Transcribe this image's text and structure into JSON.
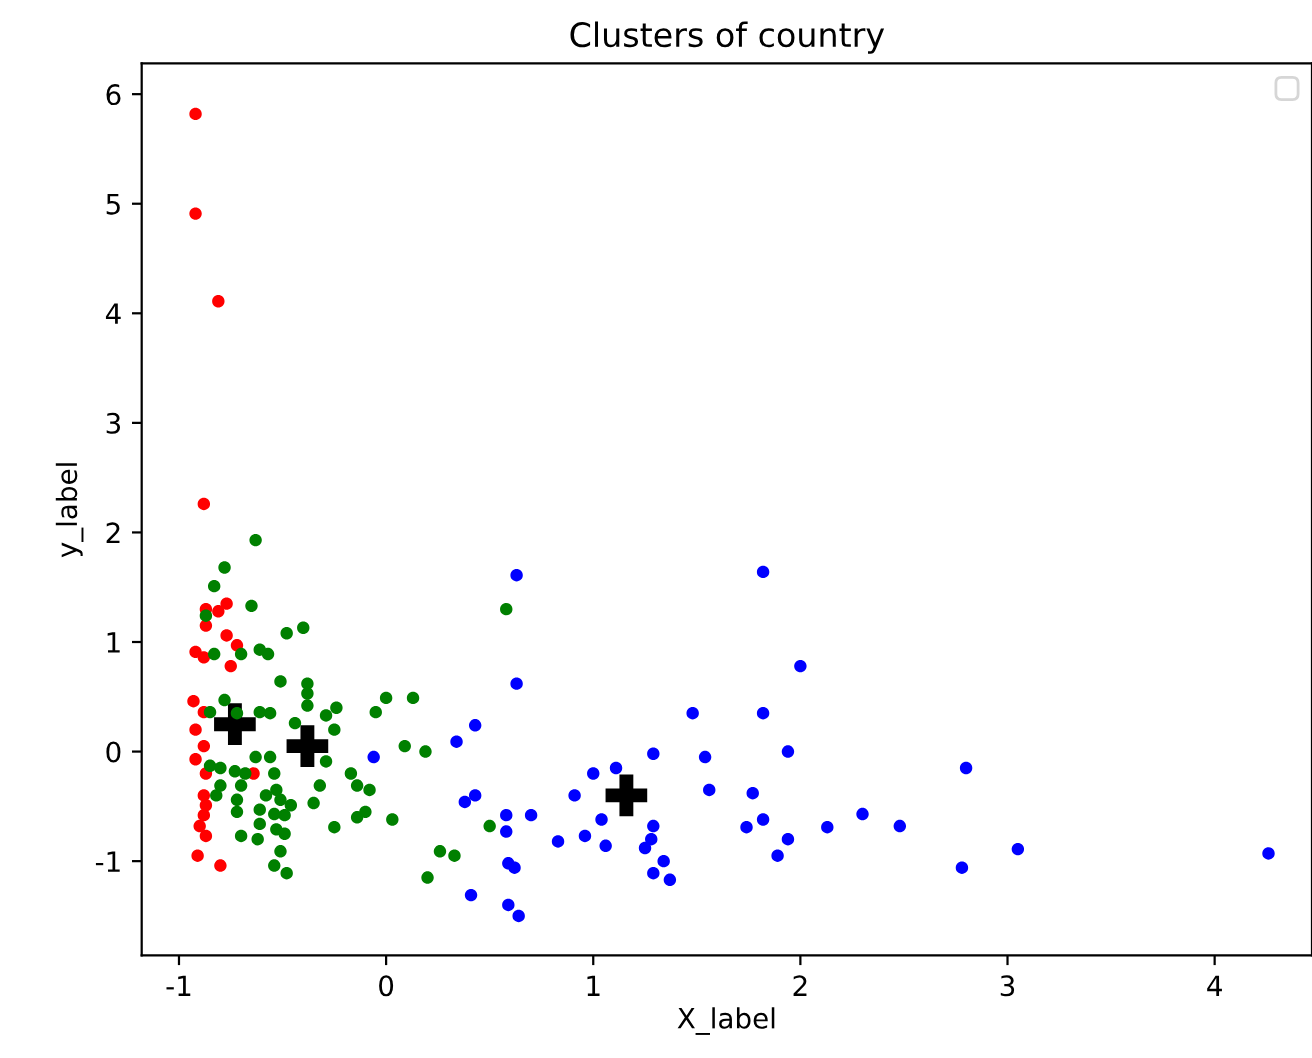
{
  "chart_data": {
    "type": "scatter",
    "title": "Clusters of country",
    "xlabel": "X_label",
    "ylabel": "y_label",
    "xlim": [
      -1.18,
      4.47
    ],
    "ylim": [
      -1.86,
      6.28
    ],
    "xticks": [
      -1,
      0,
      1,
      2,
      3,
      4
    ],
    "yticks": [
      -1,
      0,
      1,
      2,
      3,
      4,
      5,
      6
    ],
    "grid": false,
    "marker": "circle",
    "series": [
      {
        "color": "#ff0000",
        "x": [
          -0.92,
          -0.92,
          -0.81,
          -0.88,
          -0.87,
          -0.81,
          -0.77,
          -0.87,
          -0.77,
          -0.72,
          -0.92,
          -0.88,
          -0.75,
          -0.93,
          -0.88,
          -0.92,
          -0.88,
          -0.92,
          -0.87,
          -0.64,
          -0.88,
          -0.87,
          -0.88,
          -0.9,
          -0.87,
          -0.91,
          -0.8
        ],
        "values": [
          5.82,
          4.91,
          4.11,
          2.26,
          1.3,
          1.28,
          1.35,
          1.15,
          1.06,
          0.97,
          0.91,
          0.86,
          0.78,
          0.46,
          0.36,
          0.2,
          0.05,
          -0.07,
          -0.2,
          -0.2,
          -0.4,
          -0.49,
          -0.58,
          -0.68,
          -0.77,
          -0.95,
          -1.04
        ]
      },
      {
        "color": "#008000",
        "x": [
          -0.63,
          -0.78,
          -0.83,
          -0.65,
          -0.87,
          -0.4,
          -0.48,
          -0.83,
          -0.7,
          -0.61,
          -0.57,
          -0.51,
          -0.38,
          -0.38,
          -0.38,
          -0.78,
          -0.85,
          -0.72,
          -0.61,
          -0.56,
          -0.44,
          -0.29,
          -0.24,
          -0.25,
          -0.05,
          0.0,
          0.13,
          0.09,
          0.19,
          -0.63,
          -0.56,
          -0.29,
          -0.85,
          -0.8,
          -0.73,
          -0.68,
          -0.54,
          -0.17,
          -0.8,
          -0.7,
          -0.14,
          -0.08,
          -0.32,
          -0.53,
          -0.82,
          -0.72,
          -0.58,
          -0.51,
          -0.46,
          -0.35,
          -0.61,
          -0.54,
          -0.49,
          -0.72,
          -0.1,
          -0.14,
          0.03,
          -0.61,
          -0.53,
          -0.25,
          -0.7,
          -0.62,
          -0.49,
          0.5,
          -0.51,
          0.26,
          0.33,
          -0.54,
          -0.48,
          0.2,
          0.58
        ],
        "values": [
          1.93,
          1.68,
          1.51,
          1.33,
          1.24,
          1.13,
          1.08,
          0.89,
          0.89,
          0.93,
          0.89,
          0.64,
          0.62,
          0.53,
          0.42,
          0.47,
          0.36,
          0.35,
          0.36,
          0.35,
          0.26,
          0.33,
          0.4,
          0.2,
          0.36,
          0.49,
          0.49,
          0.05,
          0.0,
          -0.05,
          -0.05,
          -0.09,
          -0.13,
          -0.15,
          -0.18,
          -0.2,
          -0.2,
          -0.2,
          -0.31,
          -0.31,
          -0.31,
          -0.35,
          -0.31,
          -0.35,
          -0.4,
          -0.44,
          -0.4,
          -0.44,
          -0.49,
          -0.47,
          -0.53,
          -0.57,
          -0.58,
          -0.55,
          -0.55,
          -0.6,
          -0.62,
          -0.66,
          -0.71,
          -0.69,
          -0.77,
          -0.8,
          -0.75,
          -0.68,
          -0.91,
          -0.91,
          -0.95,
          -1.04,
          -1.11,
          -1.15,
          1.3
        ]
      },
      {
        "color": "#0000ff",
        "x": [
          0.63,
          0.63,
          -0.06,
          0.34,
          0.43,
          0.38,
          0.43,
          0.58,
          0.7,
          0.58,
          0.59,
          0.62,
          0.41,
          0.59,
          0.64,
          0.83,
          0.91,
          0.96,
          1.0,
          1.11,
          1.04,
          1.06,
          1.29,
          1.29,
          1.28,
          1.25,
          1.34,
          1.29,
          1.37,
          1.48,
          1.54,
          1.56,
          1.82,
          1.82,
          1.77,
          1.74,
          1.82,
          1.94,
          1.94,
          1.89,
          2.0,
          2.8,
          2.13,
          2.3,
          2.48,
          3.05,
          2.78,
          4.26
        ],
        "values": [
          1.61,
          0.62,
          -0.05,
          0.09,
          0.24,
          -0.46,
          -0.4,
          -0.58,
          -0.58,
          -0.73,
          -1.02,
          -1.06,
          -1.31,
          -1.4,
          -1.5,
          -0.82,
          -0.4,
          -0.77,
          -0.2,
          -0.15,
          -0.62,
          -0.86,
          -0.02,
          -0.68,
          -0.8,
          -0.88,
          -1.0,
          -1.11,
          -1.17,
          0.35,
          -0.05,
          -0.35,
          1.64,
          0.35,
          -0.38,
          -0.69,
          -0.62,
          0.0,
          -0.8,
          -0.95,
          0.78,
          -0.15,
          -0.69,
          -0.57,
          -0.68,
          -0.89,
          -1.06,
          -0.93
        ]
      },
      {
        "color": "#000000",
        "marker": "cross",
        "x": [
          -0.73,
          -0.38,
          1.16
        ],
        "values": [
          0.25,
          0.05,
          -0.4
        ]
      }
    ]
  }
}
